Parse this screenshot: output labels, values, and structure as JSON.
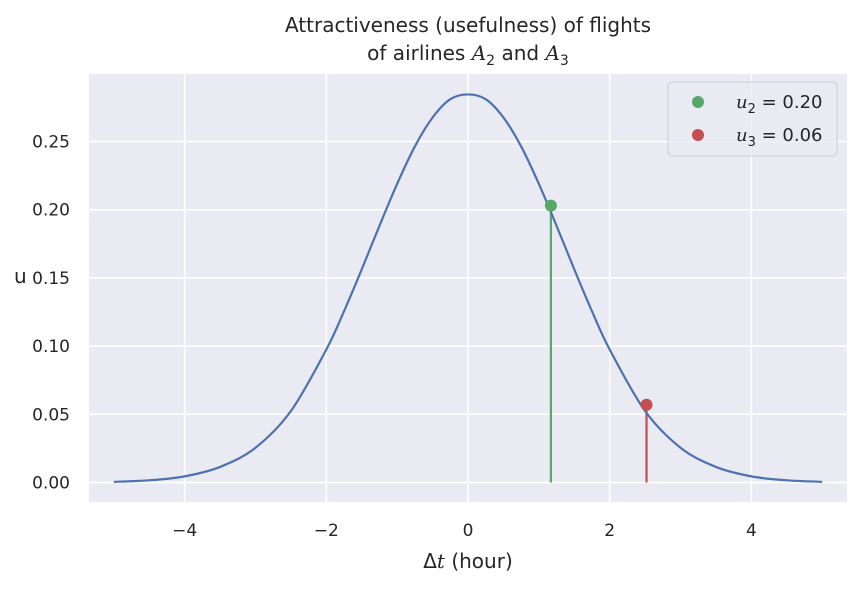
{
  "chart_data": {
    "type": "line",
    "title_line1": "Attractiveness (usefulness) of flights",
    "title_line2_prefix": "of airlines ",
    "title_line2_and": " and ",
    "title_var1": "A",
    "title_var1_sub": "2",
    "title_var2": "A",
    "title_var2_sub": "3",
    "xlabel_delta": "Δ",
    "xlabel_var": "t",
    "xlabel_rest": " (hour)",
    "ylabel": "u",
    "xlim": [
      -5.35,
      5.35
    ],
    "ylim": [
      -0.0143,
      0.2995
    ],
    "x_ticks": [
      -4,
      -2,
      0,
      2,
      4
    ],
    "x_tick_labels": [
      "−4",
      "−2",
      "0",
      "2",
      "4"
    ],
    "y_ticks": [
      0.0,
      0.05,
      0.1,
      0.15,
      0.2,
      0.25
    ],
    "y_tick_labels": [
      "0.00",
      "0.05",
      "0.10",
      "0.15",
      "0.20",
      "0.25"
    ],
    "grid": true,
    "legend_placement": "top-right",
    "curve": {
      "x": [
        -5,
        -4.5,
        -4,
        -3.5,
        -3,
        -2.5,
        -2,
        -1.75,
        -1.5,
        -1.25,
        -1,
        -0.75,
        -0.5,
        -0.25,
        0,
        0.25,
        0.5,
        0.75,
        1,
        1.25,
        1.5,
        1.75,
        2,
        2.5,
        3,
        3.5,
        4,
        4.5,
        5
      ],
      "y": [
        0.0005,
        0.0016,
        0.0045,
        0.0114,
        0.0255,
        0.0524,
        0.0975,
        0.1256,
        0.1563,
        0.1882,
        0.219,
        0.2464,
        0.2676,
        0.281,
        0.2845,
        0.281,
        0.2676,
        0.2464,
        0.219,
        0.1882,
        0.1563,
        0.1256,
        0.0975,
        0.0524,
        0.0255,
        0.0114,
        0.0045,
        0.0016,
        0.0005
      ],
      "color": "#4c72b0"
    },
    "points": [
      {
        "name_var": "u",
        "name_sub": "2",
        "value_text": " = 0.20",
        "x": 1.17,
        "y": 0.203,
        "color": "#55a868"
      },
      {
        "name_var": "u",
        "name_sub": "3",
        "value_text": " = 0.06",
        "x": 2.52,
        "y": 0.057,
        "color": "#c44e52"
      }
    ],
    "colors": {
      "background": "#eaeaf2",
      "grid": "#ffffff",
      "text": "#262626"
    }
  }
}
